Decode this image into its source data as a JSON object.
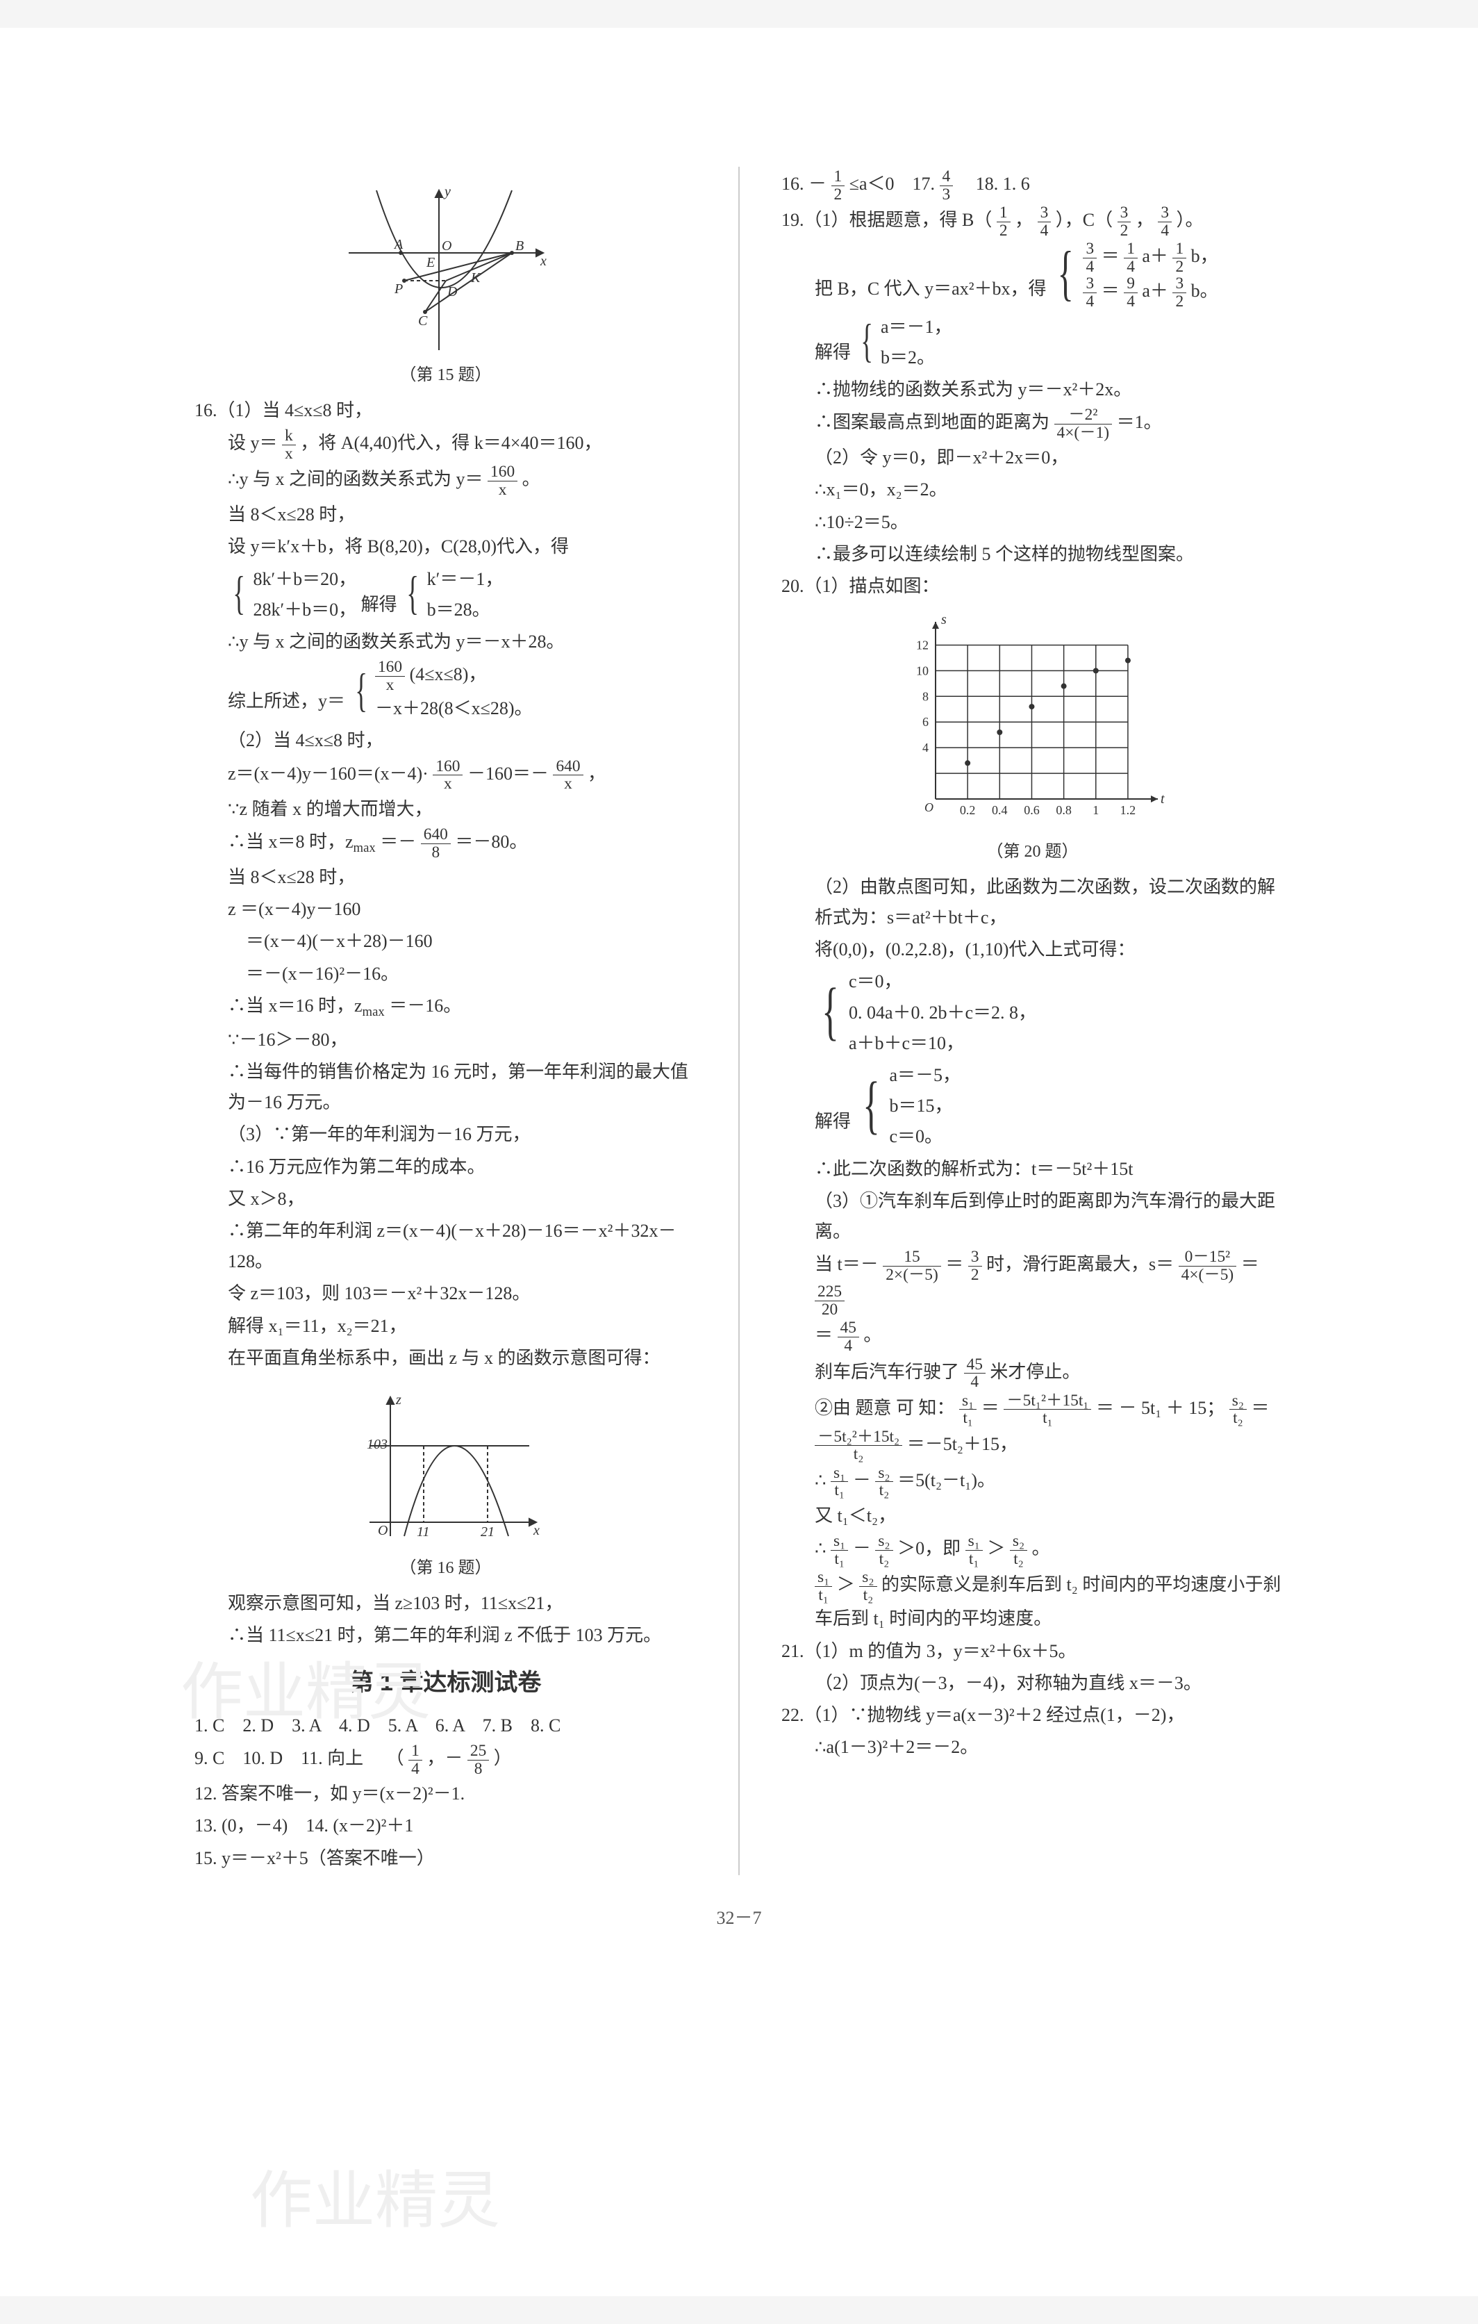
{
  "page_number": "32－7",
  "watermark": "作业精灵",
  "left": {
    "fig15_caption": "（第 15 题）",
    "fig15": {
      "stroke": "#333333",
      "axis_color": "#333333",
      "curve_color": "#333333",
      "labels": {
        "A": "A",
        "B": "B",
        "C": "C",
        "D": "D",
        "E": "E",
        "K": "K",
        "O": "O",
        "P": "P",
        "x": "x",
        "y": "y"
      }
    },
    "p16_lead": "16.（1）当 4≤x≤8 时，",
    "p16_line2a": "设 y＝",
    "p16_line2_frac": {
      "n": "k",
      "d": "x"
    },
    "p16_line2b": "，将 A(4,40)代入，得 k＝4×40＝160，",
    "p16_line3a": "∴y 与 x 之间的函数关系式为 y＝",
    "p16_line3_frac": {
      "n": "160",
      "d": "x"
    },
    "p16_line3b": "。",
    "p16_line4": "当 8＜x≤28 时，",
    "p16_line5": "设 y＝k′x＋b，将 B(8,20)，C(28,0)代入，得",
    "p16_sys1": {
      "r1": "8k′＋b＝20，",
      "r2": "28k′＋b＝0，",
      "mid": "解得",
      "s1": "k′＝－1，",
      "s2": "b＝28。"
    },
    "p16_line7": "∴y 与 x 之间的函数关系式为 y＝－x＋28。",
    "p16_line8a": "综上所述，y＝",
    "p16_piece": {
      "r1a": "",
      "r1frac": {
        "n": "160",
        "d": "x"
      },
      "r1b": "(4≤x≤8)，",
      "r2": "－x＋28(8＜x≤28)。"
    },
    "p16_2_lead": "（2）当 4≤x≤8 时，",
    "p16_2_line2a": "z＝(x－4)y－160＝(x－4)·",
    "p16_2_frac1": {
      "n": "160",
      "d": "x"
    },
    "p16_2_line2b": "－160＝－",
    "p16_2_frac2": {
      "n": "640",
      "d": "x"
    },
    "p16_2_line2c": "，",
    "p16_2_line3": "∵z 随着 x 的增大而增大，",
    "p16_2_line4a": "∴当 x＝8 时，z",
    "p16_2_sub": "max",
    "p16_2_line4b": "＝－",
    "p16_2_frac3": {
      "n": "640",
      "d": "8"
    },
    "p16_2_line4c": "＝－80。",
    "p16_2_line5": "当 8＜x≤28 时，",
    "p16_2_line6": "z ＝(x－4)y－160",
    "p16_2_line7": "　＝(x－4)(－x＋28)－160",
    "p16_2_line8": "　＝－(x－16)²－16。",
    "p16_2_line9a": "∴当 x＝16 时，z",
    "p16_2_line9b": "＝－16。",
    "p16_2_line10": "∵－16＞－80，",
    "p16_2_line11": "∴当每件的销售价格定为 16 元时，第一年年利润的最大值为－16 万元。",
    "p16_3_line1": "（3）∵第一年的年利润为－16 万元，",
    "p16_3_line2": "∴16 万元应作为第二年的成本。",
    "p16_3_line3": "又 x＞8，",
    "p16_3_line4": "∴第二年的年利润 z＝(x－4)(－x＋28)－16＝－x²＋32x－128。",
    "p16_3_line5": "令 z＝103，则 103＝－x²＋32x－128。",
    "p16_3_line6": "解得 x₁＝11，x₂＝21，",
    "p16_3_line7": "在平面直角坐标系中，画出 z 与 x 的函数示意图可得：",
    "fig16_caption": "（第 16 题）",
    "fig16": {
      "stroke": "#333333",
      "hline_y": 103,
      "xticks": [
        "11",
        "21"
      ],
      "ylabel": "z",
      "xlabel": "x",
      "hlabel": "103"
    },
    "p16_tail1": "观察示意图可知，当 z≥103 时，11≤x≤21，",
    "p16_tail2": "∴当 11≤x≤21 时，第二年的年利润 z 不低于 103 万元。",
    "section": "第 1 章达标测试卷",
    "ans_row1": "1. C　2. D　3. A　4. D　5. A　6. A　7. B　8. C",
    "ans_row2a": "9. C　10. D　11. 向上　",
    "ans_row2b_open": "（",
    "ans_row2_f1": {
      "n": "1",
      "d": "4"
    },
    "ans_row2_mid": "，－",
    "ans_row2_f2": {
      "n": "25",
      "d": "8"
    },
    "ans_row2b_close": "）",
    "ans_row3": "12. 答案不唯一，如 y＝(x－2)²－1.",
    "ans_row4": "13. (0，－4)　14. (x－2)²＋1",
    "ans_row5": "15. y＝－x²＋5（答案不唯一）"
  },
  "right": {
    "r16a": "16. －",
    "r16_f": {
      "n": "1",
      "d": "2"
    },
    "r16b": "≤a＜0　17. ",
    "r17_f": {
      "n": "4",
      "d": "3"
    },
    "r18": "　18. 1. 6",
    "r19a": "19.（1）根据题意，得 B（",
    "r19_b1": {
      "n": "1",
      "d": "2"
    },
    "r19_mid1": "，",
    "r19_b2": {
      "n": "3",
      "d": "4"
    },
    "r19b": "），C（",
    "r19_c1": {
      "n": "3",
      "d": "2"
    },
    "r19_mid2": "，",
    "r19_c2": {
      "n": "3",
      "d": "4"
    },
    "r19c": "）。",
    "r19_line2a": "把 B，C 代入 y＝ax²＋bx，得",
    "r19_sys": {
      "r1a": "",
      "r1f1": {
        "n": "3",
        "d": "4"
      },
      "r1m": "＝",
      "r1f2": {
        "n": "1",
        "d": "4"
      },
      "r1b": "a＋",
      "r1f3": {
        "n": "1",
        "d": "2"
      },
      "r1c": "b，",
      "r2a": "",
      "r2f1": {
        "n": "3",
        "d": "4"
      },
      "r2m": "＝",
      "r2f2": {
        "n": "9",
        "d": "4"
      },
      "r2b": "a＋",
      "r2f3": {
        "n": "3",
        "d": "2"
      },
      "r2c": "b。"
    },
    "r19_sol_lead": "解得",
    "r19_sol": {
      "r1": "a＝－1，",
      "r2": "b＝2。"
    },
    "r19_line4": "∴抛物线的函数关系式为 y＝－x²＋2x。",
    "r19_line5a": "∴图案最高点到地面的距离为",
    "r19_line5_frac": {
      "n": "－2²",
      "d": "4×(－1)"
    },
    "r19_line5b": "＝1。",
    "r19_2_line1": "（2）令 y＝0，即－x²＋2x＝0，",
    "r19_2_line2": "∴x₁＝0，x₂＝2。",
    "r19_2_line3": "∴10÷2＝5。",
    "r19_2_line4": "∴最多可以连续绘制 5 个这样的抛物线型图案。",
    "r20_lead": "20.（1）描点如图：",
    "fig20": {
      "axis_color": "#333333",
      "grid_color": "#333333",
      "point_color": "#333333",
      "xlim": [
        0,
        1.3
      ],
      "ylim": [
        0,
        13
      ],
      "xticks": [
        "0.2",
        "0.4",
        "0.6",
        "0.8",
        "1",
        "1.2"
      ],
      "yticks": [
        "4",
        "6",
        "8",
        "10",
        "12"
      ],
      "points": [
        [
          0.2,
          2.8
        ],
        [
          0.4,
          5.2
        ],
        [
          0.6,
          7.2
        ],
        [
          0.8,
          8.8
        ],
        [
          1.0,
          10.0
        ],
        [
          1.2,
          10.8
        ]
      ],
      "ylabel": "s",
      "xlabel": "t",
      "O": "O"
    },
    "fig20_caption": "（第 20 题）",
    "r20_2_line1": "（2）由散点图可知，此函数为二次函数，设二次函数的解析式为：s＝at²＋bt＋c，",
    "r20_2_line2": "将(0,0)，(0.2,2.8)，(1,10)代入上式可得：",
    "r20_sys": {
      "r1": "c＝0，",
      "r2": "0. 04a＋0. 2b＋c＝2. 8，",
      "r3": "a＋b＋c＝10，"
    },
    "r20_sol_lead": "解得",
    "r20_sol": {
      "r1": "a＝－5，",
      "r2": "b＝15，",
      "r3": "c＝0。"
    },
    "r20_2_line4": "∴此二次函数的解析式为：t＝－5t²＋15t",
    "r20_3_line1": "（3）①汽车刹车后到停止时的距离即为汽车滑行的最大距离。",
    "r20_3_line2a": "当 t＝－",
    "r20_3_f1": {
      "n": "15",
      "d": "2×(－5)"
    },
    "r20_3_mid1": "＝",
    "r20_3_f2": {
      "n": "3",
      "d": "2"
    },
    "r20_3_line2b": "时，滑行距离最大，s＝",
    "r20_3_f3": {
      "n": "0－15²",
      "d": "4×(－5)"
    },
    "r20_3_mid2": "＝",
    "r20_3_f4": {
      "n": "225",
      "d": "20"
    },
    "r20_3_line3a": "＝",
    "r20_3_f5": {
      "n": "45",
      "d": "4"
    },
    "r20_3_line3b": "。",
    "r20_3_line4a": "刹车后汽车行驶了",
    "r20_3_f6": {
      "n": "45",
      "d": "4"
    },
    "r20_3_line4b": "米才停止。",
    "r20_3b_line1a": "②由 题意 可 知：",
    "r20_3b_f1": {
      "n": "s₁",
      "d": "t₁"
    },
    "r20_3b_mid1": "＝",
    "r20_3b_f2": {
      "n": "－5t₁²＋15t₁",
      "d": "t₁"
    },
    "r20_3b_line1b": "＝ － 5t₁ ＋ 15；",
    "r20_3b_f3": {
      "n": "s₂",
      "d": "t₂"
    },
    "r20_3b_line1c": "＝",
    "r20_3b_line2_f": {
      "n": "－5t₂²＋15t₂",
      "d": "t₂"
    },
    "r20_3b_line2b": "＝－5t₂＋15，",
    "r20_3b_line3a": "∴",
    "r20_3b_f4": {
      "n": "s₁",
      "d": "t₁"
    },
    "r20_3b_mid3": "－",
    "r20_3b_f5": {
      "n": "s₂",
      "d": "t₂"
    },
    "r20_3b_line3b": "＝5(t₂－t₁)。",
    "r20_3b_line4": "又 t₁＜t₂，",
    "r20_3b_line5a": "∴",
    "r20_3b_f6": {
      "n": "s₁",
      "d": "t₁"
    },
    "r20_3b_mid5": "－",
    "r20_3b_f7": {
      "n": "s₂",
      "d": "t₂"
    },
    "r20_3b_line5b": "＞0，即",
    "r20_3b_f8": {
      "n": "s₁",
      "d": "t₁"
    },
    "r20_3b_mid6": "＞",
    "r20_3b_f9": {
      "n": "s₂",
      "d": "t₂"
    },
    "r20_3b_line5c": "。",
    "r20_3b_line6a": "",
    "r20_3b_fA": {
      "n": "s₁",
      "d": "t₁"
    },
    "r20_3b_mid7": "＞",
    "r20_3b_fB": {
      "n": "s₂",
      "d": "t₂"
    },
    "r20_3b_line6b": "的实际意义是刹车后到 t₂ 时间内的平均速度小于刹车后到 t₁ 时间内的平均速度。",
    "r21_line1": "21.（1）m 的值为 3，y＝x²＋6x＋5。",
    "r21_line2": "（2）顶点为(－3，－4)，对称轴为直线 x＝－3。",
    "r22_line1": "22.（1）∵抛物线 y＝a(x－3)²＋2 经过点(1，－2)，",
    "r22_line2": "∴a(1－3)²＋2＝－2。"
  }
}
